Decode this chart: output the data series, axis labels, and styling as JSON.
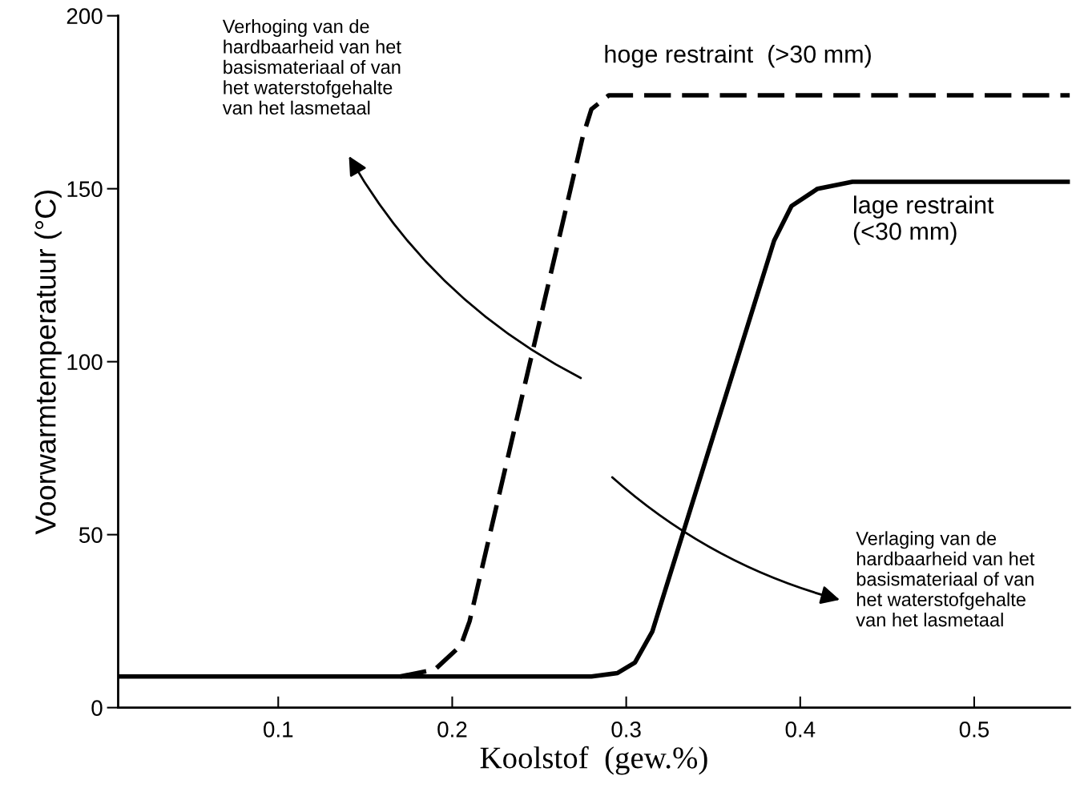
{
  "chart_data": {
    "type": "line",
    "xlabel": "Koolstof  (gew.%)",
    "ylabel": "Voorwarmtemperatuur (°C)",
    "xlim": [
      0.008,
      0.555
    ],
    "ylim": [
      0,
      200
    ],
    "xticks": [
      0.1,
      0.2,
      0.3,
      0.4,
      0.5
    ],
    "yticks": [
      0,
      50,
      100,
      150,
      200
    ],
    "grid": false,
    "legend": false,
    "marker": "none",
    "series": [
      {
        "name": "hoge restraint  (>30 mm)",
        "color": "#000000",
        "line_style": "dashed",
        "x": [
          0.17,
          0.19,
          0.205,
          0.21,
          0.275,
          0.28,
          0.29,
          0.555
        ],
        "values": [
          9,
          11,
          18,
          25,
          165,
          173,
          177,
          177
        ]
      },
      {
        "name": "lage restraint\n(<30 mm)",
        "color": "#000000",
        "line_style": "solid",
        "x": [
          0.008,
          0.28,
          0.295,
          0.305,
          0.315,
          0.385,
          0.395,
          0.41,
          0.43,
          0.555
        ],
        "values": [
          9,
          9,
          10,
          13,
          22,
          135,
          145,
          150,
          152,
          152
        ]
      }
    ],
    "annotations": [
      "Verhoging van de\nhardbaarheid van het\nbasismateriaal of van\nhet waterstofgehalte\nvan het lasmetaal",
      "Verlaging van de\nhardbaarheid van het\nbasismateriaal of van\nhet waterstofgehalte\nvan het lasmetaal"
    ]
  }
}
